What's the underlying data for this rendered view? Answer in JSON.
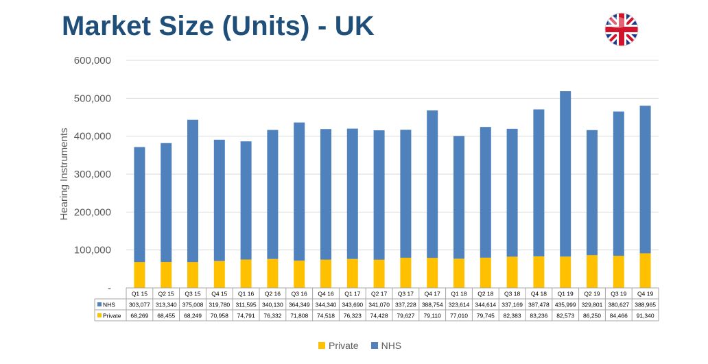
{
  "header": {
    "title": "Market Size (Units) - UK"
  },
  "icons": {
    "flag": "uk-flag-icon"
  },
  "colors": {
    "nhs": "#4f81bd",
    "private": "#ffc000",
    "title": "#1f4e79",
    "grid": "#d9d9d9"
  },
  "chart_data": {
    "type": "bar",
    "stacked": true,
    "categories": [
      "Q1 15",
      "Q2 15",
      "Q3 15",
      "Q4 15",
      "Q1 16",
      "Q2 16",
      "Q3 16",
      "Q4 16",
      "Q1 17",
      "Q2 17",
      "Q3 17",
      "Q4 17",
      "Q1 18",
      "Q2 18",
      "Q3 18",
      "Q4 18",
      "Q1 19",
      "Q2 19",
      "Q3 19",
      "Q4 19"
    ],
    "series": [
      {
        "name": "NHS",
        "color": "#4f81bd",
        "values": [
          303077,
          313340,
          375008,
          319780,
          311595,
          340130,
          364349,
          344340,
          343690,
          341070,
          337228,
          388754,
          323614,
          344614,
          337169,
          387478,
          435999,
          329801,
          380627,
          388965
        ],
        "labels": [
          "303,077",
          "313,340",
          "375,008",
          "319,780",
          "311,595",
          "340,130",
          "364,349",
          "344,340",
          "343,690",
          "341,070",
          "337,228",
          "388,754",
          "323,614",
          "344,614",
          "337,169",
          "387,478",
          "435,999",
          "329,801",
          "380,627",
          "388,965"
        ]
      },
      {
        "name": "Private",
        "color": "#ffc000",
        "values": [
          68269,
          68455,
          68249,
          70958,
          74791,
          76332,
          71808,
          74518,
          76323,
          74428,
          79627,
          79110,
          77010,
          79745,
          82383,
          83236,
          82573,
          86250,
          84466,
          91340
        ],
        "labels": [
          "68,269",
          "68,455",
          "68,249",
          "70,958",
          "74,791",
          "76,332",
          "71,808",
          "74,518",
          "76,323",
          "74,428",
          "79,627",
          "79,110",
          "77,010",
          "79,745",
          "82,383",
          "83,236",
          "82,573",
          "86,250",
          "84,466",
          "91,340"
        ]
      }
    ],
    "ylabel": "Hearing Instruments",
    "ylim": [
      0,
      600000
    ],
    "yticks": [
      "-",
      "100,000",
      "200,000",
      "300,000",
      "400,000",
      "500,000",
      "600,000"
    ],
    "grid": true,
    "data_table": true,
    "legend": {
      "position": "bottom",
      "items": [
        "Private",
        "NHS"
      ]
    }
  }
}
